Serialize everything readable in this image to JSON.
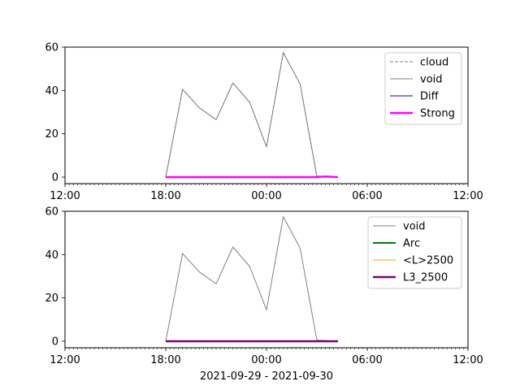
{
  "chart_data": [
    {
      "type": "line",
      "x_axis": {
        "type": "time",
        "start": "2021-09-29T12:00",
        "end": "2021-09-30T12:00",
        "tick_labels": [
          "12:00",
          "18:00",
          "00:00",
          "06:00",
          "12:00"
        ],
        "minor_tick_minutes": 15
      },
      "ylim": [
        -3,
        60
      ],
      "yticks": [
        0,
        20,
        40,
        60
      ],
      "grid": false,
      "legend_position": "upper right",
      "series": [
        {
          "name": "cloud",
          "color": "#808080",
          "style": "dashed",
          "width": 1,
          "x": [
            "2021-09-29T18:00",
            "2021-09-29T19:00",
            "2021-09-29T20:00",
            "2021-09-29T21:00",
            "2021-09-29T22:00",
            "2021-09-29T23:00",
            "2021-09-30T00:00",
            "2021-09-30T01:00",
            "2021-09-30T02:00",
            "2021-09-30T03:00",
            "2021-09-30T04:15"
          ],
          "y": [
            0,
            40.5,
            32,
            26.5,
            43.5,
            34.5,
            14,
            57.5,
            43,
            0,
            0
          ]
        },
        {
          "name": "void",
          "color": "#808080",
          "style": "solid",
          "width": 1,
          "x": [
            "2021-09-29T18:00",
            "2021-09-29T19:00",
            "2021-09-29T20:00",
            "2021-09-29T21:00",
            "2021-09-29T22:00",
            "2021-09-29T23:00",
            "2021-09-30T00:00",
            "2021-09-30T01:00",
            "2021-09-30T02:00",
            "2021-09-30T03:00",
            "2021-09-30T04:15"
          ],
          "y": [
            0,
            40.5,
            32,
            26.5,
            43.5,
            34.5,
            14,
            57.5,
            43,
            0.5,
            0
          ]
        },
        {
          "name": "Diff",
          "color": "#0000cc",
          "style": "solid",
          "width": 1,
          "x": [
            "2021-09-29T18:00",
            "2021-09-30T04:15"
          ],
          "y": [
            0,
            0
          ]
        },
        {
          "name": "Strong",
          "color": "#ff00ff",
          "style": "solid",
          "width": 2.5,
          "x": [
            "2021-09-29T18:00",
            "2021-09-30T03:00",
            "2021-09-30T03:30",
            "2021-09-30T04:15"
          ],
          "y": [
            0,
            0,
            0.3,
            0
          ]
        }
      ]
    },
    {
      "type": "line",
      "x_axis": {
        "type": "time",
        "start": "2021-09-29T12:00",
        "end": "2021-09-30T12:00",
        "tick_labels": [
          "12:00",
          "18:00",
          "00:00",
          "06:00",
          "12:00"
        ],
        "minor_tick_minutes": 15
      },
      "xlabel": "2021-09-29 - 2021-09-30",
      "ylim": [
        -3,
        60
      ],
      "yticks": [
        0,
        20,
        40,
        60
      ],
      "grid": false,
      "legend_position": "upper right",
      "series": [
        {
          "name": "void",
          "color": "#808080",
          "style": "solid",
          "width": 1,
          "x": [
            "2021-09-29T18:00",
            "2021-09-29T19:00",
            "2021-09-29T20:00",
            "2021-09-29T21:00",
            "2021-09-29T22:00",
            "2021-09-29T23:00",
            "2021-09-30T00:00",
            "2021-09-30T01:00",
            "2021-09-30T02:00",
            "2021-09-30T03:00",
            "2021-09-30T04:15"
          ],
          "y": [
            0,
            40.5,
            32,
            26.5,
            43.5,
            34.5,
            14.5,
            57.5,
            43,
            0.5,
            0
          ]
        },
        {
          "name": "Arc",
          "color": "#008000",
          "style": "solid",
          "width": 2,
          "x": [
            "2021-09-29T18:00",
            "2021-09-30T04:15"
          ],
          "y": [
            0,
            0
          ]
        },
        {
          "name": "<L>2500",
          "color": "#ffa500",
          "style": "solid",
          "width": 1,
          "x": [
            "2021-09-29T18:00",
            "2021-09-30T04:15"
          ],
          "y": [
            0,
            0
          ]
        },
        {
          "name": "L3_2500",
          "color": "#800080",
          "style": "solid",
          "width": 2.5,
          "x": [
            "2021-09-29T18:00",
            "2021-09-30T04:15"
          ],
          "y": [
            0,
            0
          ]
        }
      ]
    }
  ]
}
